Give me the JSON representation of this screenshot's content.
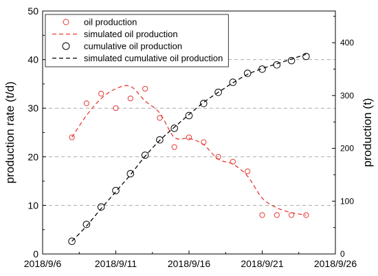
{
  "chart_data": {
    "type": "scatter",
    "x_ticks": [
      "2018/9/6",
      "2018/9/11",
      "2018/9/16",
      "2018/9/21",
      "2018/9/26"
    ],
    "ylabel": "production rate (t/d)",
    "ylim": [
      0,
      50
    ],
    "y_ticks": [
      0,
      10,
      20,
      30,
      40,
      50
    ],
    "y2label": "production (t)",
    "y2lim": [
      0,
      460
    ],
    "y2_ticks": [
      0,
      100,
      200,
      300,
      400
    ],
    "grid": "horizontal-dashed",
    "legend_position": "top-left",
    "colors": {
      "oil": "#e53935",
      "cumulative": "#000000",
      "grid": "#aaaaaa"
    },
    "series": [
      {
        "name": "oil production",
        "axis": "left",
        "style": "open-circle",
        "x": [
          "2018/9/8",
          "2018/9/9",
          "2018/9/10",
          "2018/9/11",
          "2018/9/12",
          "2018/9/13",
          "2018/9/14",
          "2018/9/15",
          "2018/9/16",
          "2018/9/17",
          "2018/9/18",
          "2018/9/19",
          "2018/9/20",
          "2018/9/21",
          "2018/9/22",
          "2018/9/23",
          "2018/9/24"
        ],
        "values": [
          24,
          31,
          33,
          30,
          32,
          34,
          28,
          22,
          24,
          23,
          20,
          19,
          17,
          8,
          8,
          8,
          8
        ]
      },
      {
        "name": "simulated oil production",
        "axis": "left",
        "style": "dashed-line",
        "x": [
          "2018/9/8",
          "2018/9/9",
          "2018/9/10",
          "2018/9/11",
          "2018/9/12",
          "2018/9/13",
          "2018/9/14",
          "2018/9/15",
          "2018/9/16",
          "2018/9/17",
          "2018/9/18",
          "2018/9/19",
          "2018/9/20",
          "2018/9/21",
          "2018/9/22",
          "2018/9/23",
          "2018/9/24"
        ],
        "values": [
          24,
          28.5,
          32,
          34,
          34.5,
          31.5,
          29,
          24,
          23.8,
          22.5,
          19.5,
          18.5,
          16,
          11.5,
          9.5,
          8.5,
          8
        ]
      },
      {
        "name": "cumulative oil production",
        "axis": "right",
        "style": "open-circle",
        "x": [
          "2018/9/8",
          "2018/9/9",
          "2018/9/10",
          "2018/9/11",
          "2018/9/12",
          "2018/9/13",
          "2018/9/14",
          "2018/9/15",
          "2018/9/16",
          "2018/9/17",
          "2018/9/18",
          "2018/9/19",
          "2018/9/20",
          "2018/9/21",
          "2018/9/22",
          "2018/9/23",
          "2018/9/24"
        ],
        "values": [
          24,
          56,
          89,
          120,
          152,
          187,
          216,
          238,
          262,
          285,
          306,
          325,
          342,
          350,
          358,
          366,
          374
        ]
      },
      {
        "name": "simulated cumulative oil production",
        "axis": "right",
        "style": "dashed-line",
        "x": [
          "2018/9/8",
          "2018/9/9",
          "2018/9/10",
          "2018/9/11",
          "2018/9/12",
          "2018/9/13",
          "2018/9/14",
          "2018/9/15",
          "2018/9/16",
          "2018/9/17",
          "2018/9/18",
          "2018/9/19",
          "2018/9/20",
          "2018/9/21",
          "2018/9/22",
          "2018/9/23",
          "2018/9/24"
        ],
        "values": [
          24,
          53,
          86,
          118,
          150,
          185,
          215,
          240,
          264,
          287,
          306,
          324,
          340,
          351,
          360,
          369,
          378
        ]
      }
    ]
  }
}
